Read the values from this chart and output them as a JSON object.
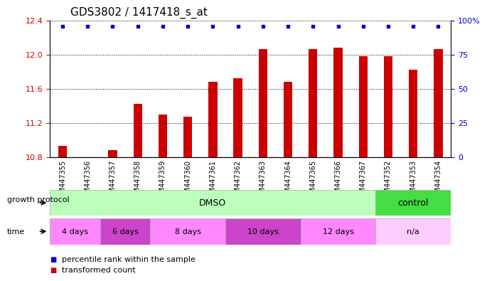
{
  "title": "GDS3802 / 1417418_s_at",
  "samples": [
    "GSM447355",
    "GSM447356",
    "GSM447357",
    "GSM447358",
    "GSM447359",
    "GSM447360",
    "GSM447361",
    "GSM447362",
    "GSM447363",
    "GSM447364",
    "GSM447365",
    "GSM447366",
    "GSM447367",
    "GSM447352",
    "GSM447353",
    "GSM447354"
  ],
  "bar_values": [
    10.93,
    10.8,
    10.88,
    11.42,
    11.3,
    11.27,
    11.68,
    11.72,
    12.06,
    11.68,
    12.06,
    12.08,
    11.98,
    11.98,
    11.82,
    12.06
  ],
  "bar_color": "#cc0000",
  "percentile_color": "#0000cc",
  "ymin": 10.8,
  "ymax": 12.4,
  "yticks_left": [
    10.8,
    11.2,
    11.6,
    12.0,
    12.4
  ],
  "yticks_right": [
    0,
    25,
    50,
    75,
    100
  ],
  "bg_color": "#ffffff",
  "plot_bg": "#ffffff",
  "grid_color": "#000000",
  "xtick_bg": "#d8d8d8",
  "dmso_samples": 13,
  "control_samples": 3,
  "dmso_color": "#bbffbb",
  "control_color": "#44dd44",
  "time_groups": [
    {
      "label": "4 days",
      "count": 2,
      "color": "#ff88ff"
    },
    {
      "label": "6 days",
      "count": 2,
      "color": "#cc44cc"
    },
    {
      "label": "8 days",
      "count": 3,
      "color": "#ff88ff"
    },
    {
      "label": "10 days",
      "count": 3,
      "color": "#cc44cc"
    },
    {
      "label": "12 days",
      "count": 3,
      "color": "#ff88ff"
    },
    {
      "label": "n/a",
      "count": 3,
      "color": "#ffccff"
    }
  ],
  "legend_items": [
    {
      "label": "transformed count",
      "color": "#cc0000"
    },
    {
      "label": "percentile rank within the sample",
      "color": "#0000cc"
    }
  ],
  "title_fontsize": 11,
  "tick_fontsize": 8,
  "label_fontsize": 8,
  "sample_fontsize": 7
}
